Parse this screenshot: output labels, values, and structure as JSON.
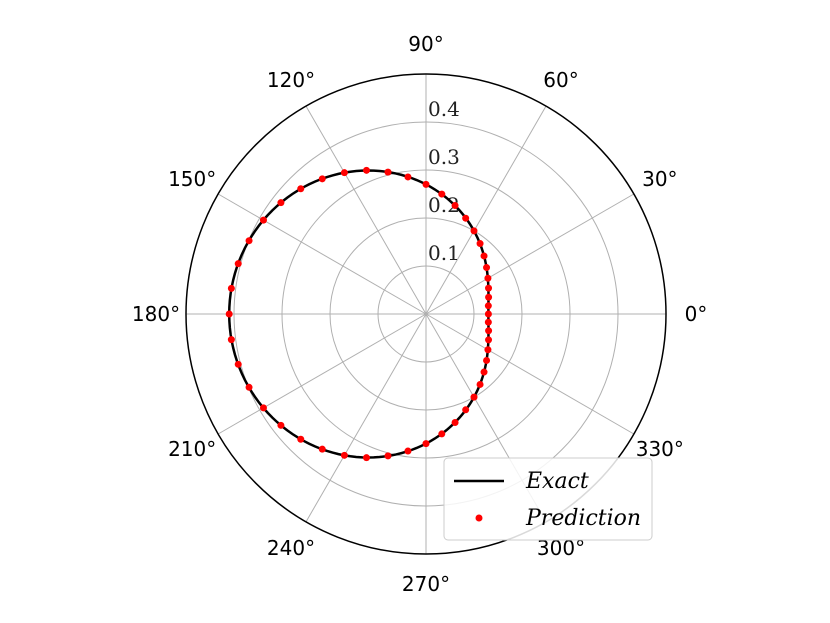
{
  "chart_data": {
    "type": "polar",
    "angular_ticks": [
      "0°",
      "30°",
      "60°",
      "90°",
      "120°",
      "150°",
      "180°",
      "210°",
      "240°",
      "270°",
      "300°",
      "330°"
    ],
    "angular_tick_degrees": [
      0,
      30,
      60,
      90,
      120,
      150,
      180,
      210,
      240,
      270,
      300,
      330
    ],
    "radial_ticks": [
      "0.1",
      "0.2",
      "0.3",
      "0.4"
    ],
    "radial_tick_values": [
      0.1,
      0.2,
      0.3,
      0.4
    ],
    "rlim": [
      0,
      0.5
    ],
    "radial_label_angle_deg": 90,
    "grid": true,
    "legend": {
      "position": "lower-right",
      "entries": [
        "Exact",
        "Prediction"
      ]
    },
    "series": [
      {
        "name": "Exact",
        "style": "line",
        "color": "#000000",
        "model": "r(theta) = a + b*cos(theta - phi)",
        "a": 0.27,
        "b": 0.14,
        "phi_deg": 180
      },
      {
        "name": "Prediction",
        "style": "markers",
        "color": "#ff0000",
        "theta_deg": [
          0,
          7.5,
          15,
          22.5,
          30,
          37.5,
          45,
          52.5,
          60,
          67.5,
          75,
          82.5,
          90,
          97.5,
          105,
          112.5,
          120,
          127.5,
          135,
          142.5,
          150,
          157.5,
          165,
          172.5,
          180,
          187.5,
          195,
          202.5,
          210,
          217.5,
          225,
          232.5,
          240,
          247.5,
          255,
          262.5,
          270,
          277.5,
          285,
          292.5,
          300,
          307.5,
          315,
          322.5,
          330,
          337.5,
          345,
          352.5
        ],
        "r": [
          0.13,
          0.131,
          0.135,
          0.141,
          0.149,
          0.159,
          0.171,
          0.185,
          0.2,
          0.216,
          0.234,
          0.252,
          0.27,
          0.288,
          0.306,
          0.324,
          0.34,
          0.355,
          0.369,
          0.381,
          0.391,
          0.399,
          0.405,
          0.409,
          0.41,
          0.409,
          0.405,
          0.399,
          0.391,
          0.381,
          0.369,
          0.355,
          0.34,
          0.324,
          0.306,
          0.288,
          0.27,
          0.252,
          0.234,
          0.216,
          0.2,
          0.185,
          0.171,
          0.159,
          0.149,
          0.141,
          0.135,
          0.131
        ]
      }
    ]
  }
}
